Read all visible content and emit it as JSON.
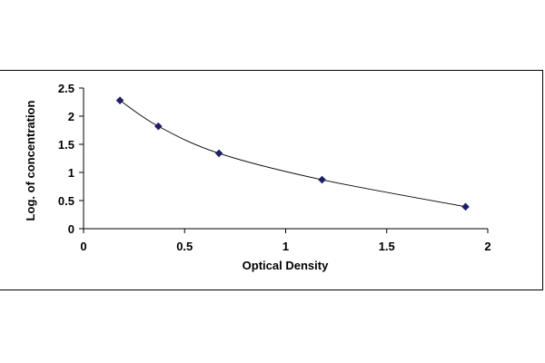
{
  "chart_data": {
    "type": "line",
    "title": "",
    "xlabel": "Optical Density",
    "ylabel": "Log. of concentration",
    "xlim": [
      0,
      2
    ],
    "ylim": [
      0,
      2.5
    ],
    "x_ticks": [
      "0",
      "0.5",
      "1",
      "1.5",
      "2"
    ],
    "y_ticks": [
      "0",
      "0.5",
      "1",
      "1.5",
      "2",
      "2.5"
    ],
    "x_tick_values": [
      0,
      0.5,
      1,
      1.5,
      2
    ],
    "y_tick_values": [
      0,
      0.5,
      1,
      1.5,
      2,
      2.5
    ],
    "grid": false,
    "legend": "none",
    "marker": "diamond",
    "line_style": "smooth",
    "colors": {
      "marker": "#1f1f66",
      "line": "#000000",
      "axis": "#000000"
    },
    "series": [
      {
        "x": [
          0.18,
          0.37,
          0.67,
          1.18,
          1.89
        ],
        "y": [
          2.28,
          1.82,
          1.34,
          0.87,
          0.39
        ]
      }
    ]
  }
}
